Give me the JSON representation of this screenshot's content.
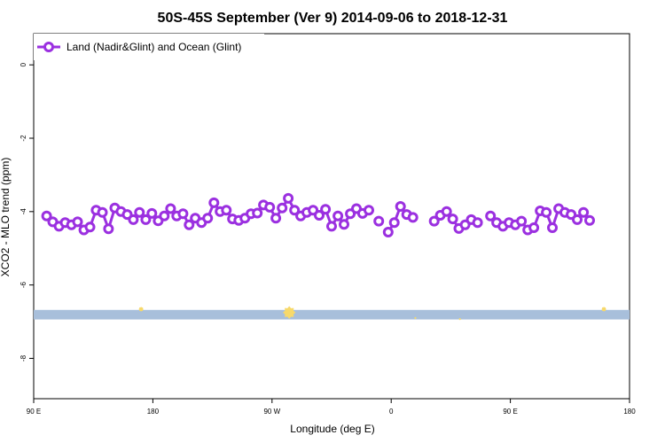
{
  "chart_data": {
    "type": "line",
    "title": "50S-45S September (Ver 9)   2014-09-06 to 2018-12-31",
    "xlabel": "Longitude (deg E)",
    "ylabel": "XCO2 - MLO trend (ppm)",
    "xlim": [
      90,
      450
    ],
    "ylim": [
      -9.1,
      0.85
    ],
    "x_ticks": [
      {
        "value": 90,
        "label": "90 E"
      },
      {
        "value": 162,
        "label": "180"
      },
      {
        "value": 234,
        "label": "90 W"
      },
      {
        "value": 306,
        "label": "0"
      },
      {
        "value": 378,
        "label": "90 E"
      },
      {
        "value": 450,
        "label": "180"
      }
    ],
    "y_ticks": [
      {
        "value": 0,
        "label": "0"
      },
      {
        "value": -2,
        "label": "-2"
      },
      {
        "value": -4,
        "label": "-4"
      },
      {
        "value": -6,
        "label": "-6"
      },
      {
        "value": -8,
        "label": "-8"
      }
    ],
    "legend": {
      "position": "top-left"
    },
    "series": [
      {
        "name": "Land (Nadir&Glint) and Ocean (Glint)",
        "color": "#9b30e0",
        "points": [
          [
            97.8,
            -4.12
          ],
          [
            101.5,
            -4.28
          ],
          [
            105.3,
            -4.4
          ],
          [
            109.0,
            -4.3
          ],
          [
            112.8,
            -4.36
          ],
          [
            116.5,
            -4.28
          ],
          [
            120.3,
            -4.5
          ],
          [
            124.0,
            -4.42
          ],
          [
            127.7,
            -3.96
          ],
          [
            131.5,
            -4.02
          ],
          [
            135.2,
            -4.47
          ],
          [
            139.0,
            -3.9
          ],
          [
            142.7,
            -4.0
          ],
          [
            146.5,
            -4.08
          ],
          [
            150.2,
            -4.22
          ],
          [
            153.9,
            -4.02
          ],
          [
            157.7,
            -4.22
          ],
          [
            161.4,
            -4.05
          ],
          [
            165.2,
            -4.25
          ],
          [
            168.9,
            -4.12
          ],
          [
            172.7,
            -3.92
          ],
          [
            176.4,
            -4.12
          ],
          [
            180.2,
            -4.06
          ],
          [
            183.9,
            -4.36
          ],
          [
            187.6,
            -4.18
          ],
          [
            191.4,
            -4.3
          ],
          [
            195.1,
            -4.18
          ],
          [
            198.9,
            -3.76
          ],
          [
            202.6,
            -4.0
          ],
          [
            206.4,
            -3.96
          ],
          [
            210.1,
            -4.2
          ],
          [
            213.9,
            -4.24
          ],
          [
            217.6,
            -4.18
          ],
          [
            221.3,
            -4.06
          ],
          [
            225.1,
            -4.04
          ],
          [
            228.8,
            -3.82
          ],
          [
            232.6,
            -3.88
          ],
          [
            236.3,
            -4.18
          ],
          [
            240.1,
            -3.9
          ],
          [
            243.8,
            -3.64
          ],
          [
            247.6,
            -3.96
          ],
          [
            251.3,
            -4.12
          ],
          [
            255.0,
            -4.02
          ],
          [
            258.8,
            -3.96
          ],
          [
            262.5,
            -4.1
          ],
          [
            266.3,
            -3.94
          ],
          [
            270.0,
            -4.4
          ],
          [
            273.8,
            -4.12
          ],
          [
            277.5,
            -4.35
          ],
          [
            281.3,
            -4.06
          ],
          [
            285.0,
            -3.92
          ],
          [
            288.7,
            -4.05
          ],
          [
            292.5,
            -3.96
          ],
          null,
          [
            298.5,
            -4.26
          ],
          null,
          [
            304.2,
            -4.56
          ],
          [
            307.9,
            -4.3
          ],
          [
            311.6,
            -3.86
          ],
          [
            315.4,
            -4.08
          ],
          [
            319.1,
            -4.16
          ],
          null,
          [
            332.0,
            -4.26
          ],
          [
            335.7,
            -4.1
          ],
          [
            339.5,
            -4.0
          ],
          [
            343.2,
            -4.2
          ],
          [
            346.9,
            -4.46
          ],
          [
            350.7,
            -4.36
          ],
          [
            354.4,
            -4.22
          ],
          [
            358.2,
            -4.3
          ],
          null,
          [
            366.0,
            -4.12
          ],
          [
            369.7,
            -4.3
          ],
          [
            373.5,
            -4.4
          ],
          [
            377.2,
            -4.3
          ],
          [
            381.0,
            -4.36
          ],
          [
            384.7,
            -4.26
          ],
          [
            388.5,
            -4.5
          ],
          [
            392.2,
            -4.44
          ],
          [
            396.0,
            -3.98
          ],
          [
            399.7,
            -4.02
          ],
          [
            403.4,
            -4.44
          ],
          [
            407.2,
            -3.92
          ],
          [
            410.9,
            -4.02
          ],
          [
            414.7,
            -4.08
          ],
          [
            418.4,
            -4.22
          ],
          [
            422.2,
            -4.02
          ],
          [
            425.9,
            -4.24
          ]
        ]
      }
    ],
    "surface_band": {
      "y_range": [
        -6.94,
        -6.68
      ],
      "color": "#a8bfdb",
      "land_markers": [
        {
          "x": 154.9,
          "y": -6.66,
          "size": 1.8
        },
        {
          "x": 244.4,
          "y": -6.75,
          "size": 4.5
        },
        {
          "x": 434.5,
          "y": -6.66,
          "size": 1.8
        },
        {
          "x": 320.6,
          "y": -6.9,
          "size": 0.8
        },
        {
          "x": 347.5,
          "y": -6.93,
          "size": 0.8
        }
      ],
      "land_color": "#f7d96a"
    }
  }
}
